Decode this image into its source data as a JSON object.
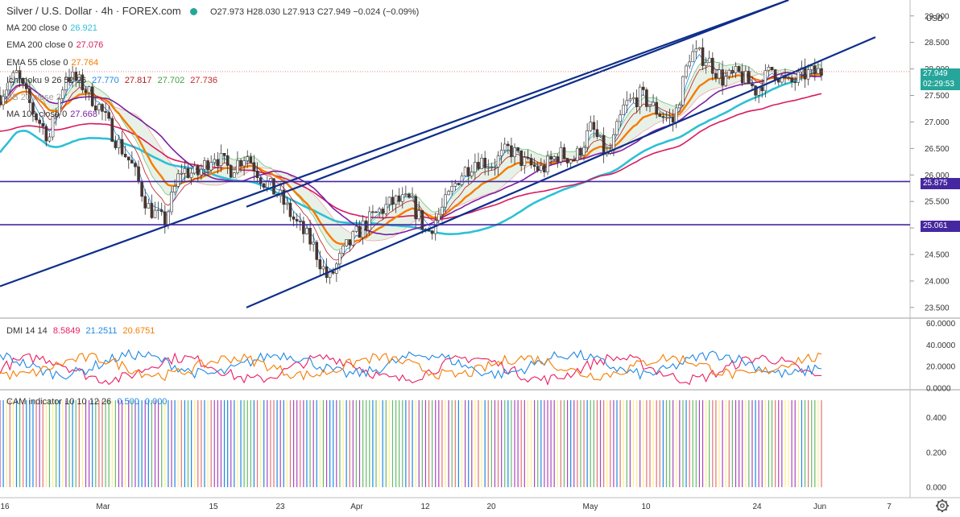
{
  "header": {
    "symbol": "Silver / U.S. Dollar · 4h · FOREX.com",
    "ohlc": "O27.973 H28.030 L27.913 C27.949 −0.024 (−0.09%)"
  },
  "indicators": [
    {
      "label": "MA 200 close 0",
      "value": "26.921",
      "color": "#2ec0d5"
    },
    {
      "label": "EMA 200 close 0",
      "value": "27.076",
      "color": "#d81b60"
    },
    {
      "label": "EMA 55 close 0",
      "value": "27.764",
      "color": "#f57c00"
    },
    {
      "label": "Ichimoku 9 26 52 26",
      "values": [
        "27.770",
        "27.817",
        "27.702",
        "27.736"
      ],
      "colors": [
        "#1e88e5",
        "#b71c1c",
        "#43a047",
        "#c62828"
      ]
    },
    {
      "label": "BB 20 close 2",
      "value": "",
      "color": "#9e9e9e"
    },
    {
      "label": "MA 100 close 0",
      "value": "27.668",
      "color": "#7b1fa2"
    }
  ],
  "currency": "USD",
  "price_label": {
    "price": "27.949",
    "countdown": "02:29:53",
    "color": "#26a69a"
  },
  "levels": [
    {
      "label": "25.875",
      "value": 25.875,
      "color": "#4527a0"
    },
    {
      "label": "25.061",
      "value": 25.061,
      "color": "#4527a0"
    }
  ],
  "dmi": {
    "label": "DMI 14 14",
    "values": [
      "8.5849",
      "21.2511",
      "20.6751"
    ],
    "colors": [
      "#e91e63",
      "#1e88e5",
      "#f57c00"
    ],
    "ticks": [
      "60.0000",
      "40.0000",
      "20.0000",
      "0.0000"
    ]
  },
  "cam": {
    "label": "CAM indicator 10 10 12 26",
    "values": [
      "0.500",
      "0.000"
    ],
    "colors": [
      "#1e88e5",
      "#1e88e5"
    ],
    "ticks": [
      "0.400",
      "0.200",
      "0.000"
    ]
  },
  "chart_data": {
    "type": "line",
    "title": "Silver / U.S. Dollar · 4h · FOREX.com",
    "y_ticks": [
      "29.000",
      "28.500",
      "28.000",
      "27.500",
      "27.000",
      "26.500",
      "26.000",
      "25.500",
      "25.000",
      "24.500",
      "24.000",
      "23.500"
    ],
    "x_ticks": [
      "16",
      "Mar",
      "15",
      "23",
      "Apr",
      "12",
      "20",
      "May",
      "10",
      "24",
      "Jun",
      "7"
    ],
    "ylim": [
      23.3,
      29.3
    ],
    "price_series": {
      "x": [
        0,
        2,
        4,
        6,
        8,
        10,
        12,
        14,
        16,
        18,
        20,
        22,
        24,
        26,
        28,
        30,
        32,
        34,
        36,
        38,
        40,
        42,
        44,
        46,
        48,
        50,
        52,
        54,
        56,
        58,
        60,
        62,
        64,
        66,
        68,
        70,
        72,
        74,
        76,
        78,
        80,
        82,
        84,
        86,
        88,
        90,
        92,
        94,
        96,
        98,
        100
      ],
      "y": [
        27.5,
        27.9,
        27.2,
        26.7,
        27.9,
        27.7,
        27.3,
        26.7,
        26.2,
        25.4,
        25.1,
        26.1,
        26.0,
        26.4,
        26.1,
        26.4,
        25.9,
        25.6,
        25.1,
        24.7,
        24.0,
        24.6,
        25.0,
        25.3,
        25.5,
        25.5,
        24.9,
        25.4,
        26.0,
        26.3,
        26.2,
        26.5,
        26.2,
        26.1,
        26.4,
        26.3,
        26.9,
        26.3,
        27.3,
        27.5,
        27.2,
        27.0,
        28.3,
        28.2,
        27.8,
        27.9,
        27.6,
        28.0,
        27.7,
        27.9,
        27.95
      ]
    },
    "trend_channel": {
      "upper": [
        [
          23.9,
          0
        ],
        [
          29.3,
          96
        ]
      ],
      "lower": [
        [
          23.5,
          30
        ],
        [
          27.75,
          86
        ],
        [
          28.6,
          110
        ]
      ]
    }
  }
}
